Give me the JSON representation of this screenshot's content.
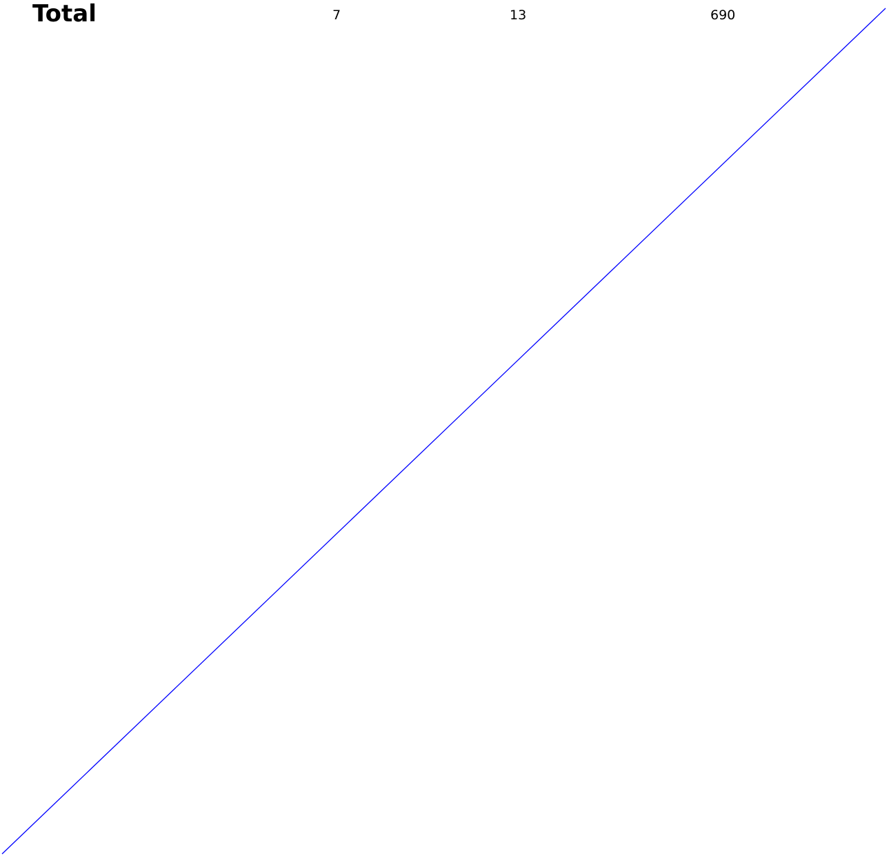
{
  "total_row": {
    "label": "Total",
    "values": [
      "7",
      "13",
      "690"
    ]
  },
  "colors": {
    "text": "#000000",
    "strike_line": "#0000ff",
    "background": "#ffffff"
  }
}
